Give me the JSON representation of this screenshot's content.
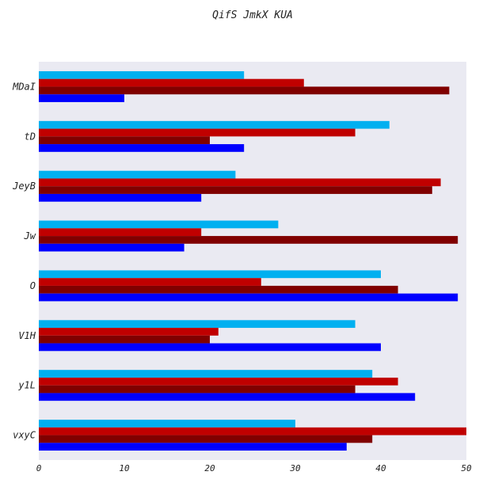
{
  "chart_data": {
    "type": "bar",
    "orientation": "horizontal",
    "title": "QifS JmkX  KUA",
    "xlabel": "",
    "ylabel": "",
    "xlim": [
      0,
      50
    ],
    "xticks": [
      "0",
      "10",
      "20",
      "30",
      "40",
      "50"
    ],
    "grid": false,
    "legend": "none",
    "background": "#eaeaf2",
    "categories": [
      "MDaI",
      "tD",
      "JeyB",
      "Jw",
      "O",
      "V1H",
      "y1L",
      "vxyC"
    ],
    "series": [
      {
        "color": "#00b0f0",
        "values": [
          24,
          41,
          23,
          28,
          40,
          37,
          39,
          30
        ]
      },
      {
        "color": "#c00000",
        "values": [
          31,
          37,
          47,
          19,
          26,
          21,
          42,
          50
        ]
      },
      {
        "color": "#800000",
        "values": [
          48,
          20,
          46,
          49,
          42,
          20,
          37,
          39
        ]
      },
      {
        "color": "#0000ff",
        "values": [
          10,
          24,
          19,
          17,
          49,
          40,
          44,
          36
        ]
      }
    ]
  }
}
